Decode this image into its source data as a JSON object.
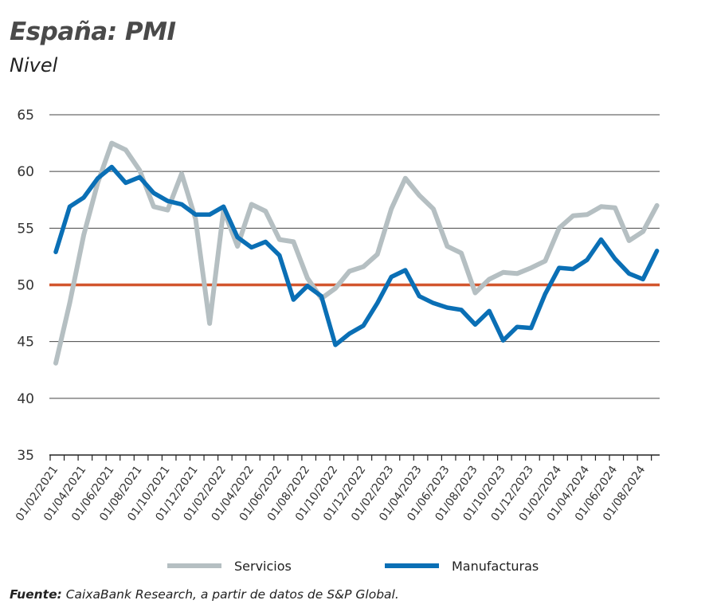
{
  "header": {
    "title": "España: PMI",
    "subtitle": "Nivel"
  },
  "source": {
    "label": "Fuente:",
    "text": " CaixaBank Research, a partir de datos de S&P Global."
  },
  "chart_data": {
    "type": "line",
    "title": "España: PMI",
    "subtitle": "Nivel",
    "ylim": [
      35,
      65
    ],
    "yticks": [
      35,
      40,
      45,
      50,
      55,
      60,
      65
    ],
    "grid": true,
    "legend_placement": "bottom",
    "reference_line": {
      "value": 50,
      "color": "#d2562e"
    },
    "x": [
      "01/02/2021",
      "01/03/2021",
      "01/04/2021",
      "01/05/2021",
      "01/06/2021",
      "01/07/2021",
      "01/08/2021",
      "01/09/2021",
      "01/10/2021",
      "01/11/2021",
      "01/12/2021",
      "01/01/2022",
      "01/02/2022",
      "01/03/2022",
      "01/04/2022",
      "01/05/2022",
      "01/06/2022",
      "01/07/2022",
      "01/08/2022",
      "01/09/2022",
      "01/10/2022",
      "01/11/2022",
      "01/12/2022",
      "01/01/2023",
      "01/02/2023",
      "01/03/2023",
      "01/04/2023",
      "01/05/2023",
      "01/06/2023",
      "01/07/2023",
      "01/08/2023",
      "01/09/2023",
      "01/10/2023",
      "01/11/2023",
      "01/12/2023",
      "01/01/2024",
      "01/02/2024",
      "01/03/2024",
      "01/04/2024",
      "01/05/2024",
      "01/06/2024",
      "01/07/2024",
      "01/08/2024",
      "01/09/2024"
    ],
    "xtick_labels": [
      "01/02/2021",
      "01/04/2021",
      "01/06/2021",
      "01/08/2021",
      "01/10/2021",
      "01/12/2021",
      "01/02/2022",
      "01/04/2022",
      "01/06/2022",
      "01/08/2022",
      "01/10/2022",
      "01/12/2022",
      "01/02/2023",
      "01/04/2023",
      "01/06/2023",
      "01/08/2023",
      "01/10/2023",
      "01/12/2023",
      "01/02/2024",
      "01/04/2024",
      "01/06/2024",
      "01/08/2024"
    ],
    "series": [
      {
        "name": "Servicios",
        "color": "#b5bfc2",
        "values": [
          43.1,
          48.4,
          54.4,
          59.0,
          62.5,
          61.9,
          60.1,
          56.9,
          56.6,
          59.8,
          55.8,
          46.6,
          56.6,
          53.4,
          57.1,
          56.5,
          54.0,
          53.8,
          50.6,
          48.8,
          49.7,
          51.2,
          51.6,
          52.7,
          56.7,
          59.4,
          57.9,
          56.7,
          53.4,
          52.8,
          49.3,
          50.5,
          51.1,
          51.0,
          51.5,
          52.1,
          55.0,
          56.1,
          56.2,
          56.9,
          56.8,
          53.9,
          54.7,
          57.0
        ]
      },
      {
        "name": "Manufacturas",
        "color": "#0a6fb5",
        "values": [
          52.9,
          56.9,
          57.7,
          59.4,
          60.4,
          59.0,
          59.5,
          58.1,
          57.4,
          57.1,
          56.2,
          56.2,
          56.9,
          54.2,
          53.3,
          53.8,
          52.6,
          48.7,
          49.9,
          49.0,
          44.7,
          45.7,
          46.4,
          48.4,
          50.7,
          51.3,
          49.0,
          48.4,
          48.0,
          47.8,
          46.5,
          47.7,
          45.1,
          46.3,
          46.2,
          49.2,
          51.5,
          51.4,
          52.2,
          54.0,
          52.3,
          51.0,
          50.5,
          53.0
        ]
      }
    ]
  }
}
